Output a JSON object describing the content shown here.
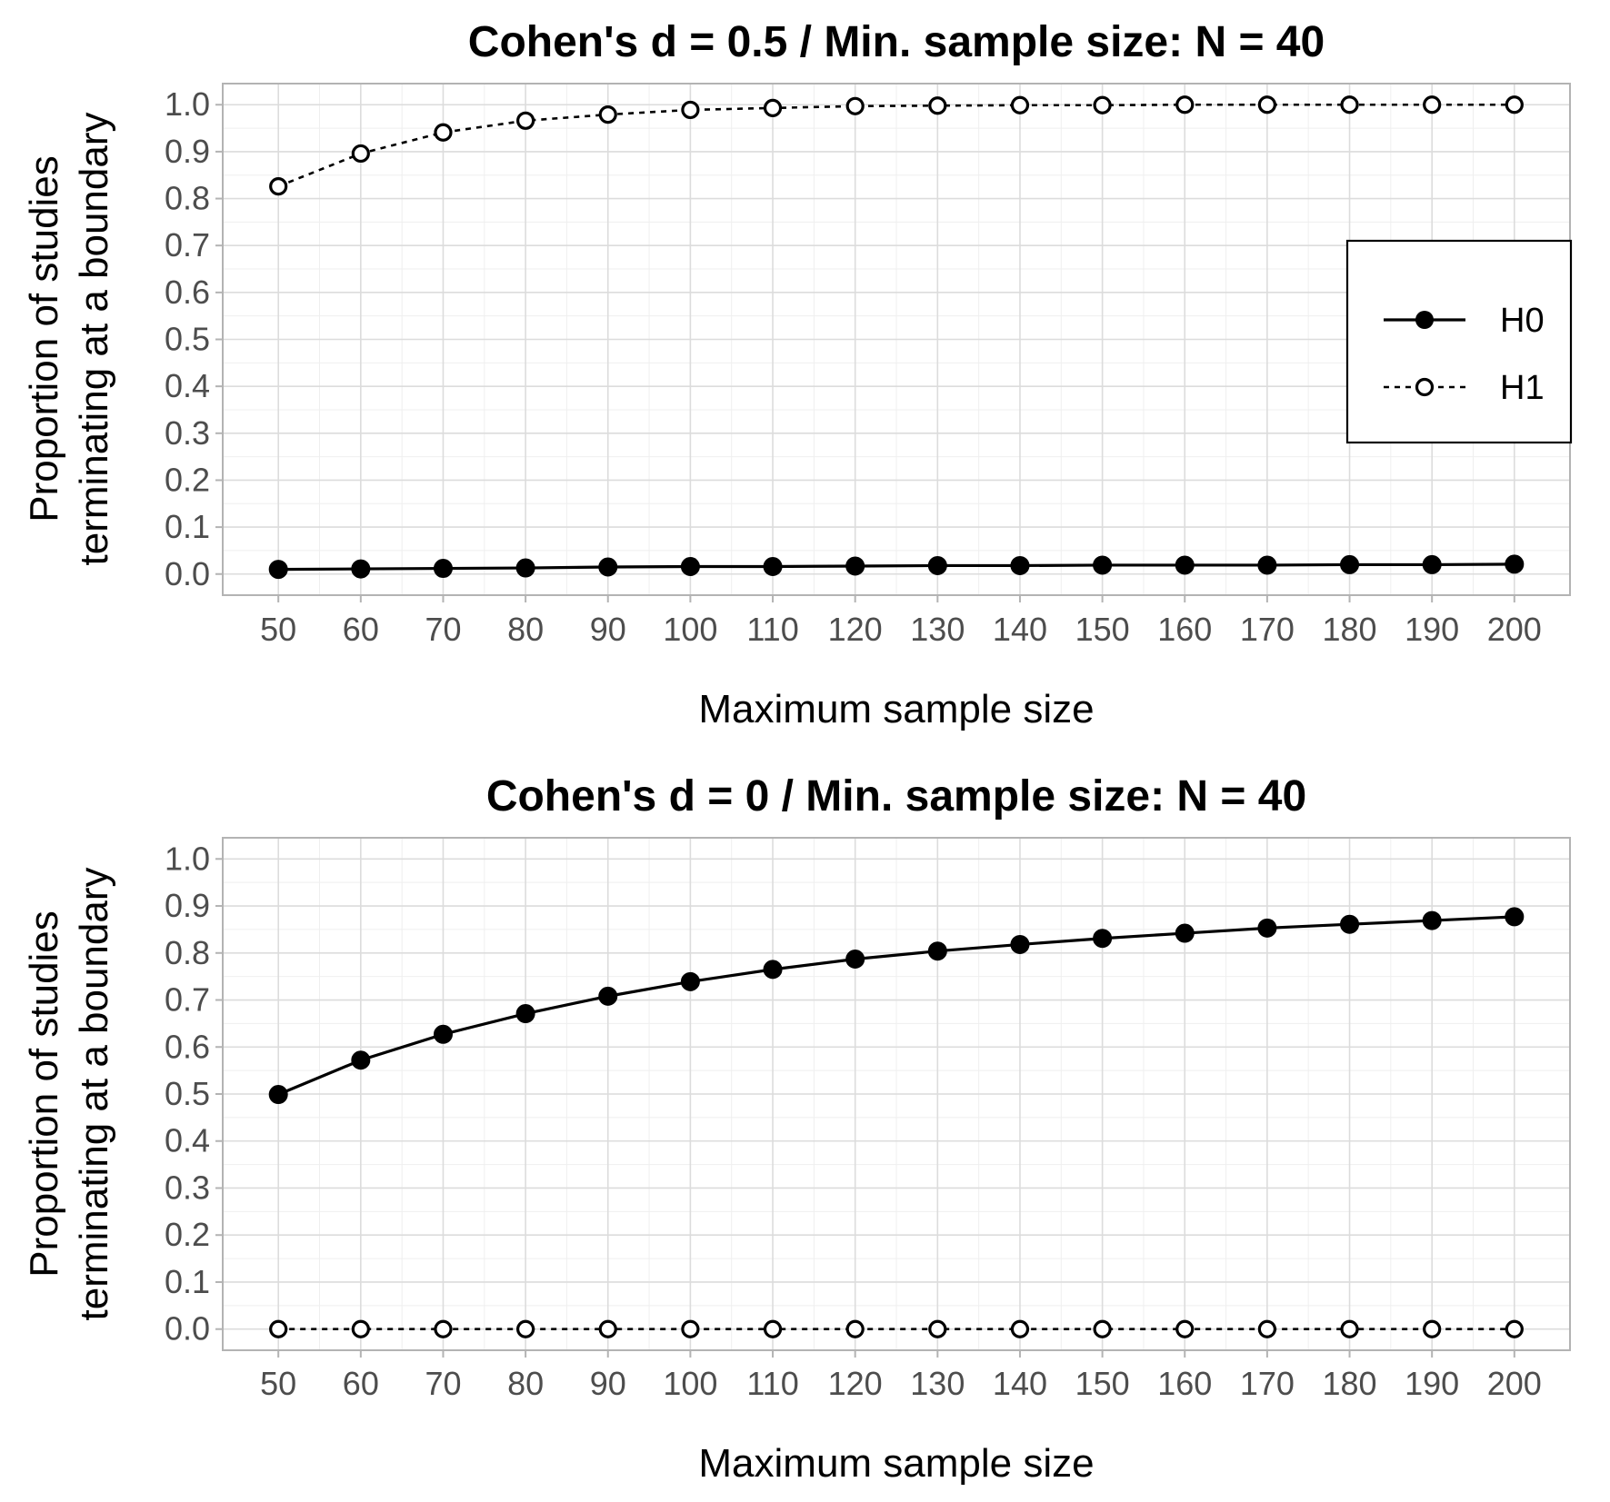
{
  "chart_data": [
    {
      "type": "line",
      "title": "Cohen's d = 0.5 / Min. sample size: N = 40",
      "xlabel": "Maximum sample size",
      "ylabel_lines": [
        "Proportion of studies",
        "terminating at a boundary"
      ],
      "x": [
        50,
        60,
        70,
        80,
        90,
        100,
        110,
        120,
        130,
        140,
        150,
        160,
        170,
        180,
        190,
        200
      ],
      "x_tick_labels": [
        "50",
        "60",
        "70",
        "80",
        "90",
        "100",
        "110",
        "120",
        "130",
        "140",
        "150",
        "160",
        "170",
        "180",
        "190",
        "200"
      ],
      "y_tick_values": [
        0.0,
        0.1,
        0.2,
        0.3,
        0.4,
        0.5,
        0.6,
        0.7,
        0.8,
        0.9,
        1.0
      ],
      "y_tick_labels": [
        "0.0",
        "0.1",
        "0.2",
        "0.3",
        "0.4",
        "0.5",
        "0.6",
        "0.7",
        "0.8",
        "0.9",
        "1.0"
      ],
      "ylim": [
        -0.045,
        1.045
      ],
      "grid": true,
      "legend": {
        "show": true,
        "position": "right",
        "entries": [
          "H0",
          "H1"
        ]
      },
      "series": [
        {
          "name": "H0",
          "style": "solid",
          "marker": "filled",
          "color": "#000000",
          "values": [
            0.01,
            0.011,
            0.012,
            0.013,
            0.015,
            0.016,
            0.016,
            0.017,
            0.018,
            0.018,
            0.019,
            0.019,
            0.019,
            0.02,
            0.02,
            0.021
          ]
        },
        {
          "name": "H1",
          "style": "dashed",
          "marker": "open",
          "color": "#000000",
          "values": [
            0.826,
            0.896,
            0.941,
            0.966,
            0.979,
            0.989,
            0.993,
            0.997,
            0.998,
            0.999,
            0.999,
            1.0,
            1.0,
            1.0,
            1.0,
            1.0
          ]
        }
      ]
    },
    {
      "type": "line",
      "title": "Cohen's d = 0 / Min. sample size: N = 40",
      "xlabel": "Maximum sample size",
      "ylabel_lines": [
        "Proportion of studies",
        "terminating at a boundary"
      ],
      "x": [
        50,
        60,
        70,
        80,
        90,
        100,
        110,
        120,
        130,
        140,
        150,
        160,
        170,
        180,
        190,
        200
      ],
      "x_tick_labels": [
        "50",
        "60",
        "70",
        "80",
        "90",
        "100",
        "110",
        "120",
        "130",
        "140",
        "150",
        "160",
        "170",
        "180",
        "190",
        "200"
      ],
      "y_tick_values": [
        0.0,
        0.1,
        0.2,
        0.3,
        0.4,
        0.5,
        0.6,
        0.7,
        0.8,
        0.9,
        1.0
      ],
      "y_tick_labels": [
        "0.0",
        "0.1",
        "0.2",
        "0.3",
        "0.4",
        "0.5",
        "0.6",
        "0.7",
        "0.8",
        "0.9",
        "1.0"
      ],
      "ylim": [
        -0.045,
        1.045
      ],
      "grid": true,
      "legend": {
        "show": false
      },
      "series": [
        {
          "name": "H0",
          "style": "solid",
          "marker": "filled",
          "color": "#000000",
          "values": [
            0.499,
            0.572,
            0.627,
            0.671,
            0.708,
            0.739,
            0.765,
            0.787,
            0.804,
            0.818,
            0.831,
            0.842,
            0.853,
            0.861,
            0.869,
            0.877
          ]
        },
        {
          "name": "H1",
          "style": "dashed",
          "marker": "open",
          "color": "#000000",
          "values": [
            0.0,
            0.0,
            0.0,
            0.0,
            0.0,
            0.0,
            0.0,
            0.0,
            0.0,
            0.0,
            0.0,
            0.0,
            0.0,
            0.0,
            0.0,
            0.0
          ]
        }
      ]
    }
  ]
}
